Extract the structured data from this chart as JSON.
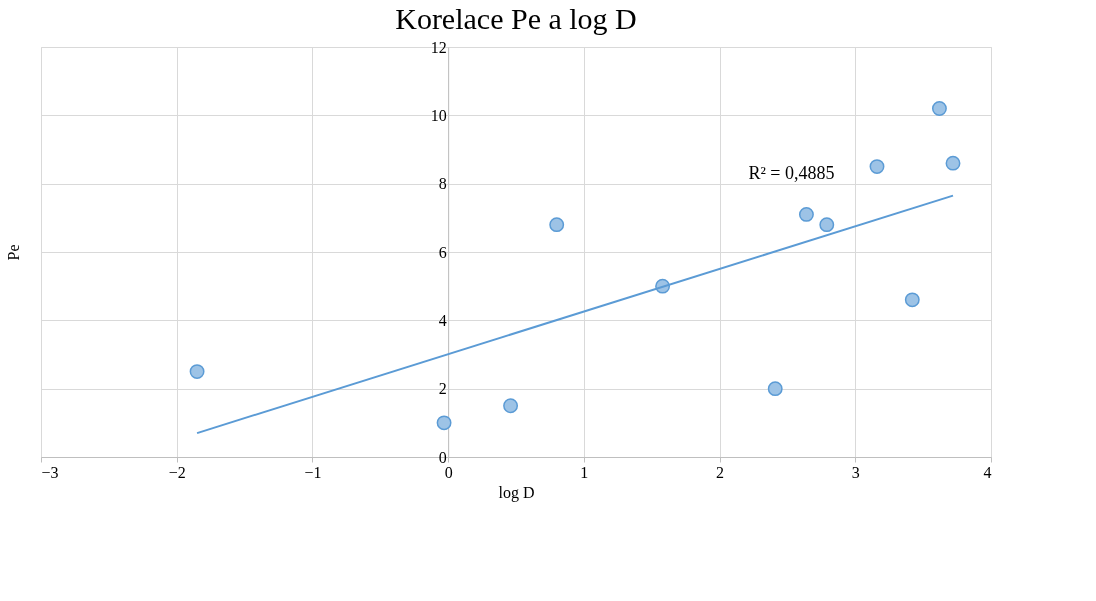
{
  "chart_data": {
    "type": "scatter",
    "title": "Korelace Pe a log D",
    "xlabel": "log D",
    "ylabel": "Pe",
    "series": [
      {
        "color": "#9dc3e6",
        "marker": "circle",
        "x": [
          -1.85,
          -0.03,
          0.46,
          0.8,
          1.58,
          2.41,
          2.64,
          2.79,
          3.16,
          3.42,
          3.62,
          3.72
        ],
        "values": [
          2.5,
          1.0,
          1.5,
          6.8,
          5.0,
          2.0,
          7.1,
          6.8,
          8.5,
          4.6,
          10.2,
          8.6
        ]
      },
      {
        "type": "line",
        "marker": "none",
        "color": "#5b9bd5",
        "x": [
          -1.85,
          3.72
        ],
        "values": [
          0.7,
          7.65
        ]
      }
    ],
    "annotations": [
      "R² = 0,4885"
    ],
    "xlim": [
      -3,
      4
    ],
    "xticks": [
      -3,
      -2,
      -1,
      0,
      1,
      2,
      3,
      4
    ],
    "ylim": [
      0,
      12
    ],
    "yticks": [
      0,
      2,
      4,
      6,
      8,
      10,
      12
    ],
    "grid": true
  }
}
